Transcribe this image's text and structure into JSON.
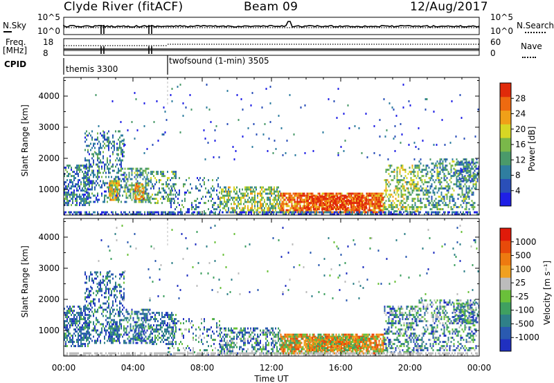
{
  "header": {
    "station": "Clyde River (fitACF)",
    "beam": "Beam 09",
    "date": "12/Aug/2017"
  },
  "top_panels": {
    "nsky_label": "N.Sky",
    "nsky_ticks": [
      "10^5",
      "10^0"
    ],
    "nsearch_label": "N.Search",
    "nsearch_ticks": [
      "10^5",
      "10^0"
    ],
    "freq_label_line1": "Freq.",
    "freq_label_line2": "[MHz]",
    "freq_ticks": [
      "18",
      "8"
    ],
    "nave_label": "Nave",
    "nave_ticks": [
      "60",
      "0"
    ],
    "cpid_label": "CPID",
    "cpid_modes": [
      {
        "name": "themis 3300",
        "start_hour": 0,
        "end_hour": 6
      },
      {
        "name": "twofsound (1-min) 3505",
        "start_hour": 6,
        "end_hour": 24
      }
    ]
  },
  "chart_data": [
    {
      "type": "heatmap",
      "title": "",
      "ylabel": "Slant Range [km]",
      "xlabel": "",
      "ylim": [
        180,
        4600
      ],
      "yticks": [
        1000,
        2000,
        3000,
        4000
      ],
      "xlim_hours": [
        0,
        24
      ],
      "colorbar": {
        "label": "Power [dB]",
        "ticks": [
          "4",
          "8",
          "12",
          "16",
          "20",
          "24",
          "28"
        ],
        "colors": [
          "#1f1fe6",
          "#2a4fb8",
          "#2f7ea0",
          "#4a9a6a",
          "#7ab84a",
          "#d7d724",
          "#f0a018",
          "#ee6a10",
          "#e02a0a"
        ]
      }
    },
    {
      "type": "heatmap",
      "title": "",
      "ylabel": "Slant Range [km]",
      "xlabel": "Time UT",
      "ylim": [
        180,
        4600
      ],
      "yticks": [
        1000,
        2000,
        3000,
        4000
      ],
      "xlim_hours": [
        0,
        24
      ],
      "xticks": [
        "00:00",
        "04:00",
        "08:00",
        "12:00",
        "16:00",
        "20:00",
        "00:00"
      ],
      "colorbar": {
        "label": "Velocity [m s⁻¹]",
        "ticks": [
          "1000",
          "500",
          "100",
          "25",
          "-25",
          "-100",
          "-500",
          "-1000"
        ],
        "colors": [
          "#2030c0",
          "#2a5ab0",
          "#2f8088",
          "#3fa060",
          "#6ac03a",
          "#bcbcbc",
          "#f0a020",
          "#ee7a10",
          "#e84a0a",
          "#e01a0a"
        ]
      }
    }
  ],
  "colors": {
    "power_scale": [
      "#1f1fe6",
      "#2a4fb8",
      "#2f7ea0",
      "#4a9a6a",
      "#7ab84a",
      "#d7d724",
      "#f0a018",
      "#ee6a10",
      "#e02a0a"
    ],
    "velocity_scale": [
      "#2030c0",
      "#2a5ab0",
      "#2f8088",
      "#3fa060",
      "#6ac03a",
      "#bcbcbc",
      "#f0a020",
      "#ee7a10",
      "#e84a0a",
      "#e01a0a"
    ]
  }
}
